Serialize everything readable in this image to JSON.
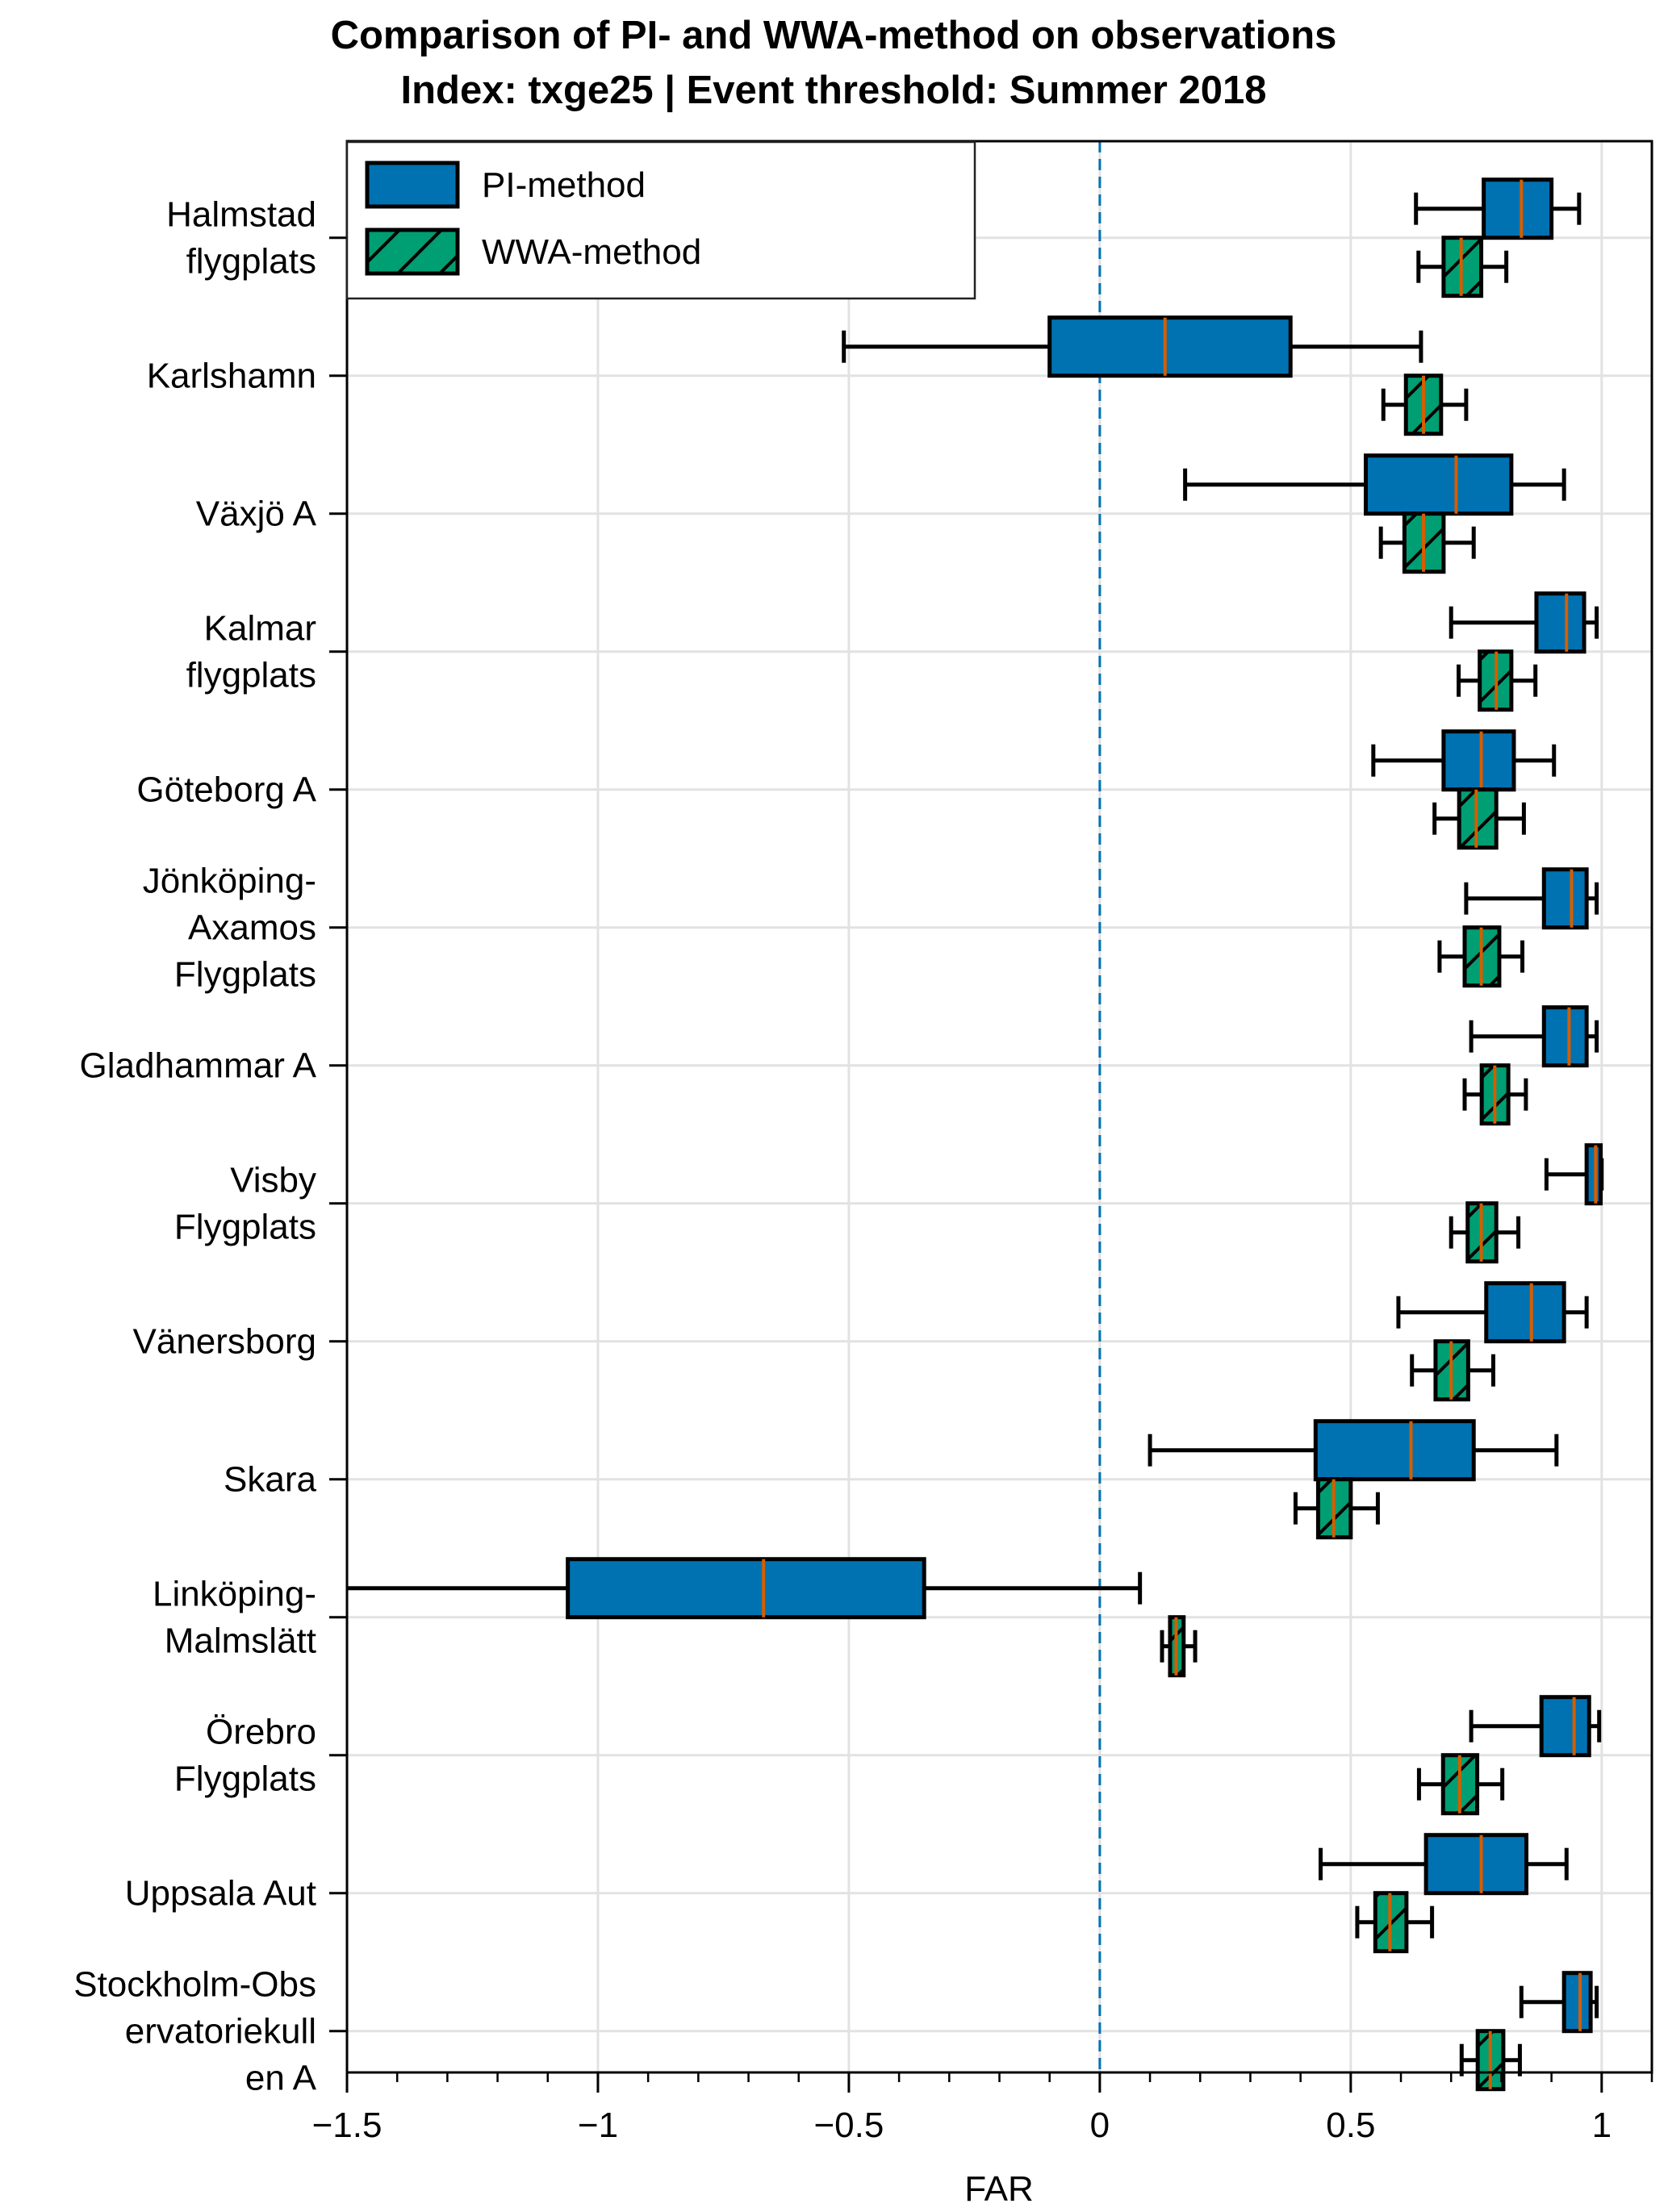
{
  "chart_data": {
    "type": "boxplot-horizontal",
    "title": [
      "Comparison of PI- and WWA-method on observations",
      "Index: txge25 | Event threshold: Summer 2018"
    ],
    "xlabel": "FAR",
    "ylabel": "",
    "xlim": [
      -1.5,
      1.1
    ],
    "xticks": [
      -1.5,
      -1,
      -0.5,
      0,
      0.5,
      1
    ],
    "xtick_labels": [
      "−1.5",
      "−1",
      "−0.5",
      "0",
      "0.5",
      "1"
    ],
    "xminor_step": 0.1,
    "grid": true,
    "reference_line": {
      "x": 0,
      "style": "dashed",
      "color": "#0072B2"
    },
    "legend": {
      "position": "top-left",
      "entries": [
        {
          "name": "PI-method",
          "color": "#0072B2",
          "hatch": false
        },
        {
          "name": "WWA-method",
          "color": "#009E73",
          "hatch": true
        }
      ]
    },
    "median_color": "#D55E00",
    "categories": [
      [
        "Halmstad",
        "flygplats"
      ],
      [
        "Karlshamn"
      ],
      [
        "Växjö A"
      ],
      [
        "Kalmar",
        "flygplats"
      ],
      [
        "Göteborg A"
      ],
      [
        "Jönköping-",
        "Axamos",
        "Flygplats"
      ],
      [
        "Gladhammar A"
      ],
      [
        "Visby",
        "Flygplats"
      ],
      [
        "Vänersborg"
      ],
      [
        "Skara"
      ],
      [
        "Linköping-",
        "Malmslätt"
      ],
      [
        "Örebro",
        "Flygplats"
      ],
      [
        "Uppsala Aut"
      ],
      [
        "Stockholm-Obs",
        "ervatoriekull",
        "en A"
      ]
    ],
    "series": [
      {
        "name": "PI-method",
        "boxes": [
          {
            "whislo": 0.63,
            "q1": 0.765,
            "med": 0.84,
            "q3": 0.9,
            "whishi": 0.955
          },
          {
            "whislo": -0.51,
            "q1": -0.1,
            "med": 0.13,
            "q3": 0.38,
            "whishi": 0.64
          },
          {
            "whislo": 0.17,
            "q1": 0.53,
            "med": 0.71,
            "q3": 0.82,
            "whishi": 0.925
          },
          {
            "whislo": 0.7,
            "q1": 0.87,
            "med": 0.93,
            "q3": 0.965,
            "whishi": 0.99
          },
          {
            "whislo": 0.545,
            "q1": 0.685,
            "med": 0.76,
            "q3": 0.825,
            "whishi": 0.905
          },
          {
            "whislo": 0.73,
            "q1": 0.885,
            "med": 0.94,
            "q3": 0.97,
            "whishi": 0.99
          },
          {
            "whislo": 0.74,
            "q1": 0.885,
            "med": 0.935,
            "q3": 0.97,
            "whishi": 0.99
          },
          {
            "whislo": 0.89,
            "q1": 0.97,
            "med": 0.988,
            "q3": 0.998,
            "whishi": 1.0
          },
          {
            "whislo": 0.595,
            "q1": 0.77,
            "med": 0.86,
            "q3": 0.925,
            "whishi": 0.97
          },
          {
            "whislo": 0.1,
            "q1": 0.43,
            "med": 0.62,
            "q3": 0.745,
            "whishi": 0.91
          },
          {
            "whislo": -1.55,
            "q1": -1.06,
            "med": -0.67,
            "q3": -0.35,
            "whishi": 0.08
          },
          {
            "whislo": 0.74,
            "q1": 0.88,
            "med": 0.945,
            "q3": 0.975,
            "whishi": 0.995
          },
          {
            "whislo": 0.44,
            "q1": 0.65,
            "med": 0.76,
            "q3": 0.85,
            "whishi": 0.93
          },
          {
            "whislo": 0.84,
            "q1": 0.925,
            "med": 0.957,
            "q3": 0.978,
            "whishi": 0.99
          }
        ]
      },
      {
        "name": "WWA-method",
        "boxes": [
          {
            "whislo": 0.635,
            "q1": 0.685,
            "med": 0.72,
            "q3": 0.76,
            "whishi": 0.81
          },
          {
            "whislo": 0.565,
            "q1": 0.61,
            "med": 0.645,
            "q3": 0.68,
            "whishi": 0.73
          },
          {
            "whislo": 0.56,
            "q1": 0.607,
            "med": 0.645,
            "q3": 0.685,
            "whishi": 0.745
          },
          {
            "whislo": 0.715,
            "q1": 0.757,
            "med": 0.79,
            "q3": 0.82,
            "whishi": 0.868
          },
          {
            "whislo": 0.667,
            "q1": 0.716,
            "med": 0.75,
            "q3": 0.79,
            "whishi": 0.845
          },
          {
            "whislo": 0.677,
            "q1": 0.727,
            "med": 0.76,
            "q3": 0.796,
            "whishi": 0.842
          },
          {
            "whislo": 0.727,
            "q1": 0.761,
            "med": 0.787,
            "q3": 0.814,
            "whishi": 0.849
          },
          {
            "whislo": 0.7,
            "q1": 0.733,
            "med": 0.76,
            "q3": 0.79,
            "whishi": 0.834
          },
          {
            "whislo": 0.622,
            "q1": 0.669,
            "med": 0.7,
            "q3": 0.734,
            "whishi": 0.784
          },
          {
            "whislo": 0.39,
            "q1": 0.435,
            "med": 0.466,
            "q3": 0.5,
            "whishi": 0.554
          },
          {
            "whislo": 0.124,
            "q1": 0.14,
            "med": 0.152,
            "q3": 0.167,
            "whishi": 0.19
          },
          {
            "whislo": 0.636,
            "q1": 0.684,
            "med": 0.717,
            "q3": 0.752,
            "whishi": 0.802
          },
          {
            "whislo": 0.513,
            "q1": 0.549,
            "med": 0.578,
            "q3": 0.611,
            "whishi": 0.662
          },
          {
            "whislo": 0.721,
            "q1": 0.753,
            "med": 0.778,
            "q3": 0.804,
            "whishi": 0.837
          }
        ]
      }
    ]
  }
}
